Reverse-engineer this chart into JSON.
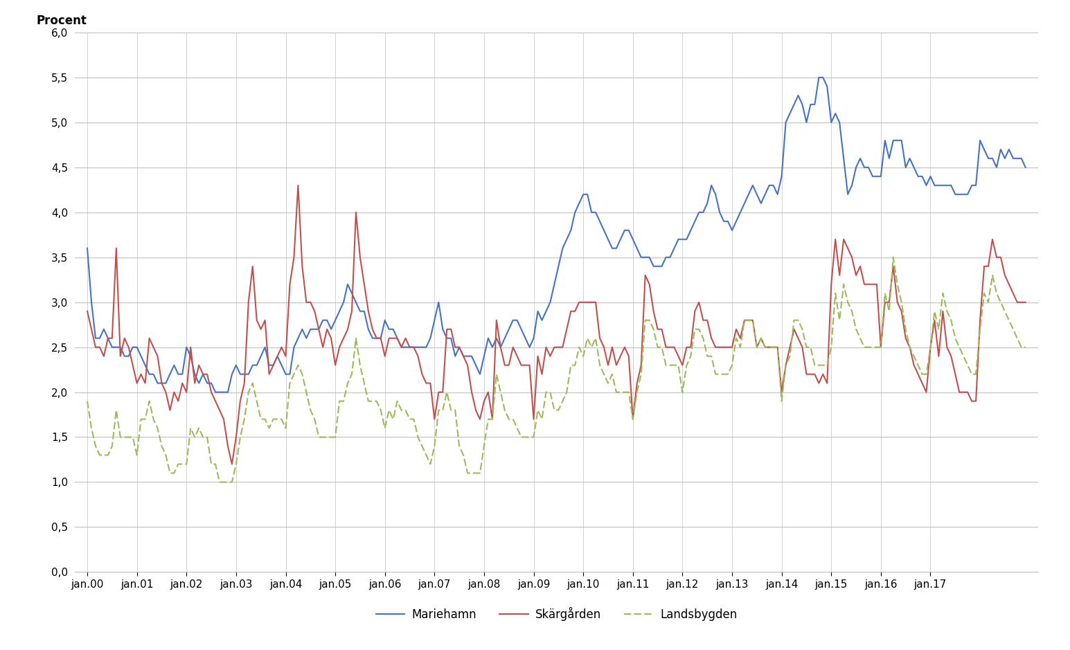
{
  "title_ylabel": "Procent",
  "ylim": [
    0.0,
    6.0
  ],
  "yticks": [
    0.0,
    0.5,
    1.0,
    1.5,
    2.0,
    2.5,
    3.0,
    3.5,
    4.0,
    4.5,
    5.0,
    5.5,
    6.0
  ],
  "xtick_labels": [
    "jan.00",
    "jan.01",
    "jan.02",
    "jan.03",
    "jan.04",
    "jan.05",
    "jan.06",
    "jan.07",
    "jan.08",
    "jan.09",
    "jan.10",
    "jan.11",
    "jan.12",
    "jan.13",
    "jan.14",
    "jan.15",
    "jan.16",
    "jan.17"
  ],
  "mariehamn_color": "#4472C4",
  "skargarden_color": "#C0504D",
  "landsbygden_color": "#9BBB59",
  "background_color": "#FFFFFF",
  "grid_color": "#C0C0C0",
  "legend_labels": [
    "Mariehamn",
    "Skärgården",
    "Landsbygden"
  ],
  "mariehamn": [
    3.6,
    3.0,
    2.6,
    2.6,
    2.7,
    2.6,
    2.5,
    2.5,
    2.5,
    2.4,
    2.4,
    2.5,
    2.5,
    2.4,
    2.3,
    2.2,
    2.2,
    2.1,
    2.1,
    2.1,
    2.2,
    2.3,
    2.2,
    2.2,
    2.5,
    2.4,
    2.2,
    2.1,
    2.2,
    2.1,
    2.1,
    2.0,
    2.0,
    2.0,
    2.0,
    2.2,
    2.3,
    2.2,
    2.2,
    2.2,
    2.3,
    2.3,
    2.4,
    2.5,
    2.3,
    2.3,
    2.4,
    2.3,
    2.2,
    2.2,
    2.5,
    2.6,
    2.7,
    2.6,
    2.7,
    2.7,
    2.7,
    2.8,
    2.8,
    2.7,
    2.8,
    2.9,
    3.0,
    3.2,
    3.1,
    3.0,
    2.9,
    2.9,
    2.7,
    2.6,
    2.6,
    2.6,
    2.8,
    2.7,
    2.7,
    2.6,
    2.5,
    2.5,
    2.5,
    2.5,
    2.5,
    2.5,
    2.5,
    2.6,
    2.8,
    3.0,
    2.7,
    2.6,
    2.6,
    2.4,
    2.5,
    2.4,
    2.4,
    2.4,
    2.3,
    2.2,
    2.4,
    2.6,
    2.5,
    2.6,
    2.5,
    2.6,
    2.7,
    2.8,
    2.8,
    2.7,
    2.6,
    2.5,
    2.6,
    2.9,
    2.8,
    2.9,
    3.0,
    3.2,
    3.4,
    3.6,
    3.7,
    3.8,
    4.0,
    4.1,
    4.2,
    4.2,
    4.0,
    4.0,
    3.9,
    3.8,
    3.7,
    3.6,
    3.6,
    3.7,
    3.8,
    3.8,
    3.7,
    3.6,
    3.5,
    3.5,
    3.5,
    3.4,
    3.4,
    3.4,
    3.5,
    3.5,
    3.6,
    3.7,
    3.7,
    3.7,
    3.8,
    3.9,
    4.0,
    4.0,
    4.1,
    4.3,
    4.2,
    4.0,
    3.9,
    3.9,
    3.8,
    3.9,
    4.0,
    4.1,
    4.2,
    4.3,
    4.2,
    4.1,
    4.2,
    4.3,
    4.3,
    4.2,
    4.4,
    5.0,
    5.1,
    5.2,
    5.3,
    5.2,
    5.0,
    5.2,
    5.2,
    5.5,
    5.5,
    5.4,
    5.0,
    5.1,
    5.0,
    4.6,
    4.2,
    4.3,
    4.5,
    4.6,
    4.5,
    4.5,
    4.4,
    4.4,
    4.4,
    4.8,
    4.6,
    4.8,
    4.8,
    4.8,
    4.5,
    4.6,
    4.5,
    4.4,
    4.4,
    4.3,
    4.4,
    4.3,
    4.3,
    4.3,
    4.3,
    4.3,
    4.2,
    4.2,
    4.2,
    4.2,
    4.3,
    4.3,
    4.8,
    4.7,
    4.6,
    4.6,
    4.5,
    4.7,
    4.6,
    4.7,
    4.6,
    4.6,
    4.6,
    4.5
  ],
  "skargarden": [
    2.9,
    2.7,
    2.5,
    2.5,
    2.4,
    2.6,
    2.6,
    3.6,
    2.4,
    2.6,
    2.5,
    2.3,
    2.1,
    2.2,
    2.1,
    2.6,
    2.5,
    2.4,
    2.1,
    2.0,
    1.8,
    2.0,
    1.9,
    2.1,
    2.0,
    2.5,
    2.1,
    2.3,
    2.2,
    2.2,
    2.0,
    1.9,
    1.8,
    1.7,
    1.4,
    1.2,
    1.5,
    1.9,
    2.1,
    3.0,
    3.4,
    2.8,
    2.7,
    2.8,
    2.2,
    2.3,
    2.4,
    2.5,
    2.4,
    3.2,
    3.5,
    4.3,
    3.4,
    3.0,
    3.0,
    2.9,
    2.7,
    2.5,
    2.7,
    2.6,
    2.3,
    2.5,
    2.6,
    2.7,
    2.9,
    4.0,
    3.5,
    3.2,
    2.9,
    2.7,
    2.6,
    2.6,
    2.4,
    2.6,
    2.6,
    2.6,
    2.5,
    2.6,
    2.5,
    2.5,
    2.4,
    2.2,
    2.1,
    2.1,
    1.7,
    2.0,
    2.0,
    2.7,
    2.7,
    2.5,
    2.5,
    2.4,
    2.3,
    2.0,
    1.8,
    1.7,
    1.9,
    2.0,
    1.7,
    2.8,
    2.5,
    2.3,
    2.3,
    2.5,
    2.4,
    2.3,
    2.3,
    2.3,
    1.7,
    2.4,
    2.2,
    2.5,
    2.4,
    2.5,
    2.5,
    2.5,
    2.7,
    2.9,
    2.9,
    3.0,
    3.0,
    3.0,
    3.0,
    3.0,
    2.6,
    2.5,
    2.3,
    2.5,
    2.3,
    2.4,
    2.5,
    2.4,
    1.7,
    2.1,
    2.3,
    3.3,
    3.2,
    2.9,
    2.7,
    2.7,
    2.5,
    2.5,
    2.5,
    2.4,
    2.3,
    2.5,
    2.5,
    2.9,
    3.0,
    2.8,
    2.8,
    2.6,
    2.5,
    2.5,
    2.5,
    2.5,
    2.5,
    2.7,
    2.6,
    2.8,
    2.8,
    2.8,
    2.5,
    2.6,
    2.5,
    2.5,
    2.5,
    2.5,
    2.0,
    2.3,
    2.5,
    2.7,
    2.6,
    2.5,
    2.2,
    2.2,
    2.2,
    2.1,
    2.2,
    2.1,
    3.2,
    3.7,
    3.3,
    3.7,
    3.6,
    3.5,
    3.3,
    3.4,
    3.2,
    3.2,
    3.2,
    3.2,
    2.5,
    3.0,
    3.0,
    3.4,
    3.0,
    2.9,
    2.6,
    2.5,
    2.3,
    2.2,
    2.1,
    2.0,
    2.5,
    2.8,
    2.4,
    2.9,
    2.5,
    2.4,
    2.2,
    2.0,
    2.0,
    2.0,
    1.9,
    1.9,
    2.8,
    3.4,
    3.4,
    3.7,
    3.5,
    3.5,
    3.3,
    3.2,
    3.1,
    3.0,
    3.0,
    3.0
  ],
  "landsbygden": [
    1.9,
    1.6,
    1.4,
    1.3,
    1.3,
    1.3,
    1.4,
    1.8,
    1.5,
    1.5,
    1.5,
    1.5,
    1.3,
    1.7,
    1.7,
    1.9,
    1.7,
    1.6,
    1.4,
    1.3,
    1.1,
    1.1,
    1.2,
    1.2,
    1.2,
    1.6,
    1.5,
    1.6,
    1.5,
    1.5,
    1.2,
    1.2,
    1.0,
    1.0,
    1.0,
    1.0,
    1.2,
    1.5,
    1.7,
    2.0,
    2.1,
    1.9,
    1.7,
    1.7,
    1.6,
    1.7,
    1.7,
    1.7,
    1.6,
    2.1,
    2.2,
    2.3,
    2.2,
    2.0,
    1.8,
    1.7,
    1.5,
    1.5,
    1.5,
    1.5,
    1.5,
    1.9,
    1.9,
    2.1,
    2.2,
    2.6,
    2.3,
    2.1,
    1.9,
    1.9,
    1.9,
    1.8,
    1.6,
    1.8,
    1.7,
    1.9,
    1.8,
    1.8,
    1.7,
    1.7,
    1.5,
    1.4,
    1.3,
    1.2,
    1.4,
    1.8,
    1.8,
    2.0,
    1.8,
    1.8,
    1.4,
    1.3,
    1.1,
    1.1,
    1.1,
    1.1,
    1.4,
    1.7,
    1.7,
    2.2,
    2.0,
    1.8,
    1.7,
    1.7,
    1.6,
    1.5,
    1.5,
    1.5,
    1.5,
    1.8,
    1.7,
    2.0,
    2.0,
    1.8,
    1.8,
    1.9,
    2.0,
    2.3,
    2.3,
    2.5,
    2.4,
    2.6,
    2.5,
    2.6,
    2.3,
    2.2,
    2.1,
    2.2,
    2.0,
    2.0,
    2.0,
    2.0,
    1.7,
    2.0,
    2.2,
    2.8,
    2.8,
    2.7,
    2.5,
    2.5,
    2.3,
    2.3,
    2.3,
    2.3,
    2.0,
    2.3,
    2.4,
    2.7,
    2.7,
    2.6,
    2.4,
    2.4,
    2.2,
    2.2,
    2.2,
    2.2,
    2.3,
    2.6,
    2.5,
    2.8,
    2.8,
    2.8,
    2.5,
    2.6,
    2.5,
    2.5,
    2.5,
    2.5,
    1.9,
    2.3,
    2.4,
    2.8,
    2.8,
    2.7,
    2.5,
    2.5,
    2.3,
    2.3,
    2.3,
    2.3,
    2.5,
    3.1,
    2.8,
    3.2,
    3.0,
    2.9,
    2.7,
    2.6,
    2.5,
    2.5,
    2.5,
    2.5,
    2.5,
    3.1,
    2.9,
    3.5,
    3.2,
    3.0,
    2.7,
    2.5,
    2.4,
    2.3,
    2.2,
    2.2,
    2.5,
    2.9,
    2.7,
    3.1,
    2.9,
    2.8,
    2.6,
    2.5,
    2.4,
    2.3,
    2.2,
    2.2,
    2.7,
    3.1,
    3.0,
    3.3,
    3.1,
    3.0,
    2.9,
    2.8,
    2.7,
    2.6,
    2.5,
    2.5
  ]
}
